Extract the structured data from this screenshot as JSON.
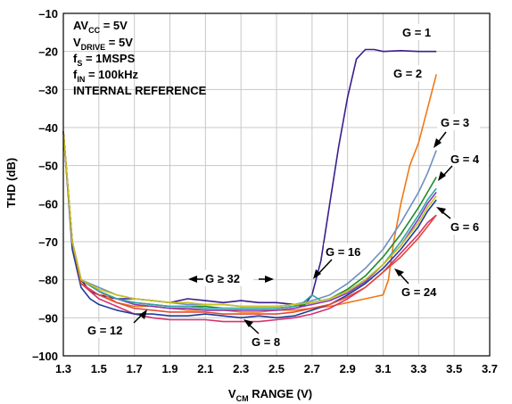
{
  "chart_data": {
    "type": "line",
    "xlabel": {
      "main": "V",
      "sub": "CM",
      "rest": " RANGE (V)"
    },
    "ylabel": "THD (dB)",
    "xlim": [
      1.3,
      3.7
    ],
    "ylim": [
      -100,
      -10
    ],
    "x_ticks": [
      "1.3",
      "1.5",
      "1.7",
      "1.9",
      "2.1",
      "2.3",
      "2.5",
      "2.7",
      "2.9",
      "3.1",
      "3.3",
      "3.5",
      "3.7"
    ],
    "y_ticks": [
      "–10",
      "–20",
      "–30",
      "–40",
      "–50",
      "–60",
      "–70",
      "–80",
      "–90",
      "–100"
    ],
    "grid": true,
    "conditions": {
      "avcc": {
        "main": "AV",
        "sub": "CC",
        "rest": " = 5V"
      },
      "vdrive": {
        "main": "V",
        "sub": "DRIVE",
        "rest": " = 5V"
      },
      "fs": {
        "main": "f",
        "sub": "S",
        "rest": " = 1MSPS"
      },
      "fin": {
        "main": "f",
        "sub": "IN",
        "rest": " = 100kHz"
      },
      "ref": "INTERNAL REFERENCE"
    },
    "series": [
      {
        "name": "G = 1",
        "color": "#3a1e8c",
        "x": [
          1.3,
          1.35,
          1.4,
          1.45,
          1.5,
          1.6,
          1.7,
          1.8,
          1.9,
          2.0,
          2.1,
          2.2,
          2.3,
          2.4,
          2.5,
          2.6,
          2.65,
          2.7,
          2.75,
          2.8,
          2.85,
          2.9,
          2.95,
          3.0,
          3.05,
          3.1,
          3.2,
          3.3,
          3.4
        ],
        "y": [
          -41,
          -70,
          -80,
          -83,
          -84,
          -85,
          -85,
          -85.5,
          -86,
          -85,
          -85.5,
          -86,
          -85.5,
          -86,
          -86,
          -86.5,
          -87,
          -84,
          -75,
          -60,
          -45,
          -32,
          -22,
          -19.5,
          -19.5,
          -20,
          -19.8,
          -20,
          -20
        ]
      },
      {
        "name": "G = 2",
        "color": "#f07818",
        "x": [
          1.3,
          1.35,
          1.4,
          1.5,
          1.6,
          1.7,
          1.8,
          1.9,
          2.0,
          2.1,
          2.2,
          2.3,
          2.4,
          2.5,
          2.6,
          2.7,
          2.8,
          2.9,
          3.0,
          3.05,
          3.1,
          3.13,
          3.16,
          3.2,
          3.25,
          3.3,
          3.35,
          3.4
        ],
        "y": [
          -41,
          -70,
          -80,
          -83,
          -86,
          -87,
          -87,
          -87.5,
          -88,
          -88,
          -88,
          -88.5,
          -88.5,
          -88,
          -88,
          -87.5,
          -87,
          -86,
          -85,
          -84.5,
          -84,
          -80,
          -70,
          -60,
          -50,
          -44,
          -35,
          -26
        ]
      },
      {
        "name": "G = 3",
        "color": "#6f8fc0",
        "x": [
          1.3,
          1.35,
          1.4,
          1.5,
          1.6,
          1.7,
          1.8,
          1.9,
          2.0,
          2.1,
          2.2,
          2.3,
          2.4,
          2.5,
          2.6,
          2.7,
          2.8,
          2.9,
          3.0,
          3.1,
          3.2,
          3.3,
          3.35,
          3.4
        ],
        "y": [
          -41,
          -70,
          -80,
          -82,
          -84,
          -85,
          -85.5,
          -86,
          -86.5,
          -86.5,
          -86.5,
          -87,
          -87,
          -87,
          -86.5,
          -85.5,
          -84,
          -81,
          -77,
          -72,
          -65,
          -57,
          -52,
          -46
        ]
      },
      {
        "name": "G = 4",
        "color": "#1f8a2a",
        "x": [
          1.3,
          1.35,
          1.4,
          1.5,
          1.6,
          1.7,
          1.8,
          1.9,
          2.0,
          2.1,
          2.2,
          2.3,
          2.4,
          2.5,
          2.6,
          2.7,
          2.8,
          2.9,
          3.0,
          3.1,
          3.2,
          3.3,
          3.35,
          3.4
        ],
        "y": [
          -41,
          -70,
          -80,
          -83,
          -85,
          -86,
          -86.5,
          -87,
          -87,
          -87,
          -87.5,
          -87.5,
          -87.5,
          -87.5,
          -87,
          -86,
          -85,
          -82.5,
          -79,
          -74,
          -68,
          -61,
          -57,
          -53
        ]
      },
      {
        "name": "G = 6",
        "color": "#8a3ab8",
        "x": [
          1.3,
          1.35,
          1.4,
          1.5,
          1.6,
          1.7,
          1.8,
          1.9,
          2.0,
          2.1,
          2.2,
          2.3,
          2.4,
          2.5,
          2.6,
          2.7,
          2.8,
          2.9,
          3.0,
          3.1,
          3.2,
          3.3,
          3.35,
          3.4
        ],
        "y": [
          -41,
          -70,
          -80,
          -83,
          -85,
          -86.5,
          -87,
          -87.5,
          -87.5,
          -88,
          -88,
          -88,
          -88,
          -88,
          -87.5,
          -86.5,
          -85.5,
          -83.5,
          -80.5,
          -76,
          -71,
          -64,
          -60,
          -57
        ]
      },
      {
        "name": "G = 8",
        "color": "#d8306e",
        "x": [
          1.3,
          1.35,
          1.4,
          1.5,
          1.6,
          1.7,
          1.8,
          1.9,
          2.0,
          2.1,
          2.2,
          2.3,
          2.4,
          2.5,
          2.6,
          2.7,
          2.8,
          2.9,
          3.0,
          3.1,
          3.2,
          3.3,
          3.35,
          3.4
        ],
        "y": [
          -41,
          -70,
          -81,
          -85,
          -87,
          -89,
          -90,
          -90.5,
          -90.5,
          -90.5,
          -91,
          -91,
          -91,
          -90.5,
          -90,
          -89,
          -87.5,
          -85,
          -82,
          -78,
          -73,
          -68,
          -65,
          -63
        ]
      },
      {
        "name": "G = 12",
        "color": "#1c3c96",
        "x": [
          1.3,
          1.35,
          1.4,
          1.45,
          1.5,
          1.6,
          1.7,
          1.8,
          1.9,
          2.0,
          2.1,
          2.2,
          2.3,
          2.4,
          2.5,
          2.6,
          2.7,
          2.8,
          2.9,
          3.0,
          3.1,
          3.2,
          3.3,
          3.35,
          3.4
        ],
        "y": [
          -41,
          -72,
          -82,
          -85,
          -86.5,
          -88,
          -89,
          -89,
          -89.5,
          -89.5,
          -89,
          -89.5,
          -90,
          -89.5,
          -90,
          -89.5,
          -88,
          -86.5,
          -84,
          -81,
          -77,
          -72,
          -66,
          -62,
          -59
        ]
      },
      {
        "name": "G = 16",
        "color": "#2fa6a8",
        "x": [
          1.3,
          1.35,
          1.4,
          1.5,
          1.6,
          1.7,
          1.8,
          1.9,
          2.0,
          2.1,
          2.2,
          2.3,
          2.4,
          2.5,
          2.6,
          2.65,
          2.7,
          2.75,
          2.8,
          2.9,
          3.0,
          3.1,
          3.2,
          3.3,
          3.35,
          3.4
        ],
        "y": [
          -41,
          -70,
          -80,
          -83,
          -85,
          -86,
          -86.5,
          -87,
          -87,
          -87.5,
          -87.5,
          -87.5,
          -87.5,
          -87.5,
          -87,
          -86,
          -84,
          -85.5,
          -85,
          -83,
          -80,
          -76,
          -70,
          -63,
          -59,
          -56
        ]
      },
      {
        "name": "G = 24",
        "color": "#e04a3c",
        "x": [
          1.3,
          1.35,
          1.4,
          1.5,
          1.6,
          1.7,
          1.8,
          1.9,
          2.0,
          2.1,
          2.2,
          2.3,
          2.4,
          2.5,
          2.6,
          2.7,
          2.8,
          2.9,
          3.0,
          3.1,
          3.2,
          3.3,
          3.35,
          3.4
        ],
        "y": [
          -41,
          -70,
          -81,
          -84,
          -86,
          -87.5,
          -88,
          -88.5,
          -88.5,
          -88.5,
          -89,
          -89,
          -89,
          -89,
          -88.5,
          -87.5,
          -86.5,
          -84.5,
          -82,
          -78,
          -74,
          -69,
          -66,
          -63
        ]
      },
      {
        "name": "G ≥ 32",
        "color": "#c8c020",
        "x": [
          1.3,
          1.35,
          1.4,
          1.5,
          1.6,
          1.7,
          1.8,
          1.9,
          2.0,
          2.1,
          2.2,
          2.3,
          2.4,
          2.5,
          2.6,
          2.7,
          2.8,
          2.9,
          3.0,
          3.1,
          3.2,
          3.3,
          3.35,
          3.4
        ],
        "y": [
          -41,
          -70,
          -80,
          -82.5,
          -84,
          -85,
          -85.5,
          -86,
          -86,
          -86.5,
          -86.5,
          -87,
          -87,
          -87,
          -86.5,
          -86,
          -85,
          -83,
          -80,
          -76,
          -71,
          -65,
          -61,
          -58
        ]
      }
    ],
    "annotations": [
      {
        "id": "g1",
        "text": "G = 1"
      },
      {
        "id": "g2",
        "text": "G = 2"
      },
      {
        "id": "g3",
        "text": "G = 3"
      },
      {
        "id": "g4",
        "text": "G = 4"
      },
      {
        "id": "g6",
        "text": "G = 6"
      },
      {
        "id": "g8",
        "text": "G = 8"
      },
      {
        "id": "g12",
        "text": "G = 12"
      },
      {
        "id": "g16",
        "text": "G = 16"
      },
      {
        "id": "g24",
        "text": "G = 24"
      },
      {
        "id": "g32",
        "text": "G ≥ 32"
      }
    ]
  }
}
